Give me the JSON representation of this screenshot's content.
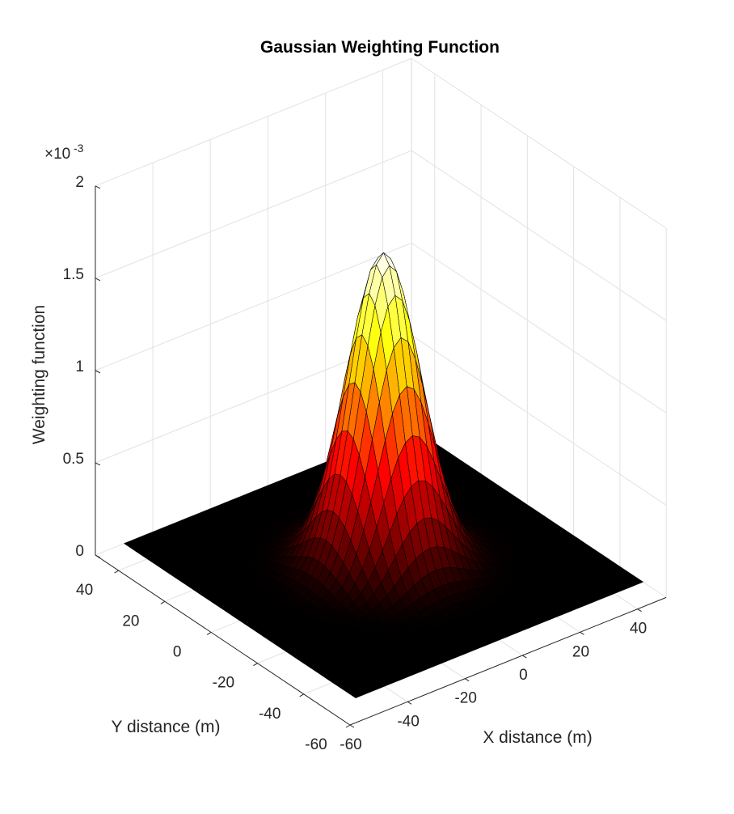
{
  "chart_data": {
    "type": "surface3d",
    "title": "Gaussian Weighting Function",
    "xlabel": "X distance (m)",
    "ylabel": "Y distance (m)",
    "zlabel": "Weighting function",
    "z_exponent_base": "×10",
    "z_exponent_power": "-3",
    "xlim": [
      -60,
      50
    ],
    "ylim": [
      -60,
      50
    ],
    "zlim": [
      0,
      0.002
    ],
    "x_ticks": [
      -60,
      -40,
      -20,
      0,
      20,
      40
    ],
    "y_ticks": [
      -60,
      -40,
      -20,
      0,
      20,
      40
    ],
    "z_ticks": [
      0,
      0.0005,
      0.001,
      0.0015,
      0.002
    ],
    "x_tick_labels": [
      "-60",
      "-40",
      "-20",
      "0",
      "20",
      "40"
    ],
    "y_tick_labels": [
      "-60",
      "-40",
      "-20",
      "0",
      "20",
      "40"
    ],
    "z_tick_labels": [
      "0",
      "0.5",
      "1",
      "1.5",
      "2"
    ],
    "surface": {
      "function": "gaussian",
      "peak": 0.00168,
      "center": [
        0,
        0
      ],
      "sigma": 10.2,
      "x_range": [
        -50,
        50
      ],
      "y_range": [
        -50,
        50
      ],
      "grid_points": 41
    },
    "colormap": "hot",
    "grid": true
  }
}
